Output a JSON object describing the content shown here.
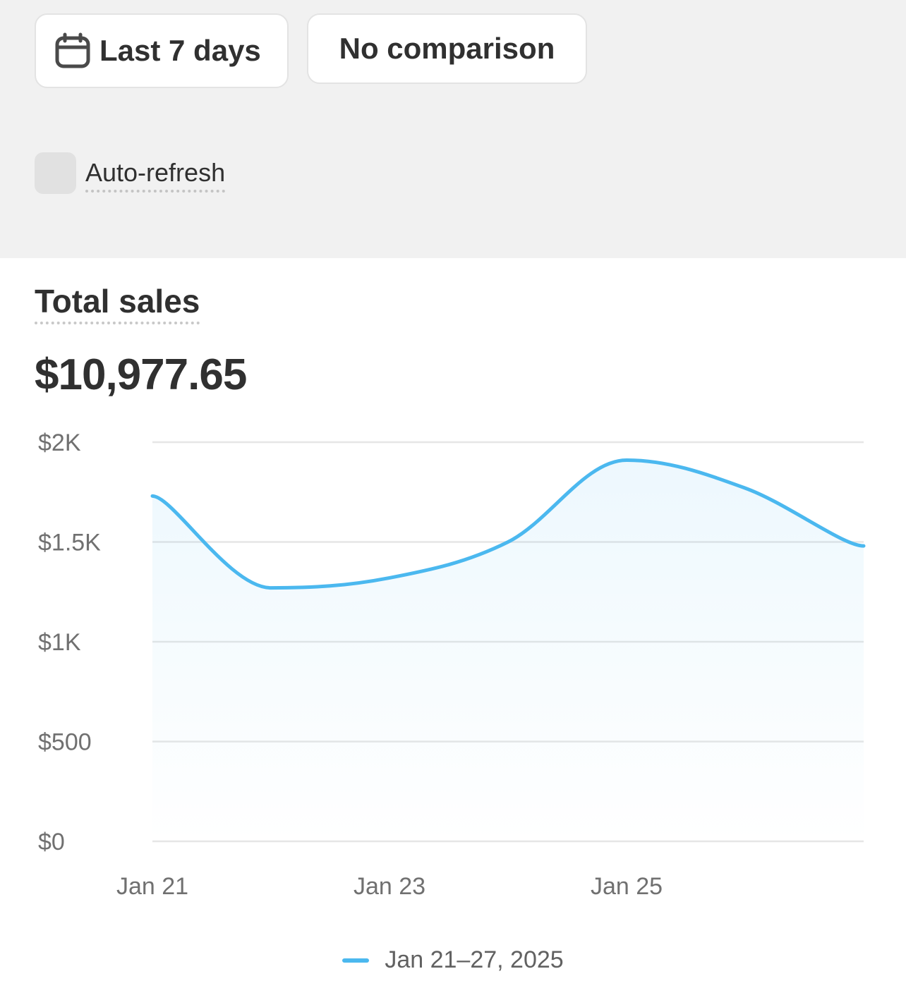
{
  "toolbar": {
    "date_button_label": "Last 7 days",
    "compare_button_label": "No comparison",
    "auto_refresh_label": "Auto-refresh",
    "date_icon": "calendar-icon"
  },
  "card": {
    "title": "Total sales",
    "total_value": "$10,977.65"
  },
  "colors": {
    "series": "#4bb8ef",
    "toolbar_bg": "#f1f1f1"
  },
  "chart_data": {
    "type": "area",
    "x": [
      "Jan 21",
      "Jan 22",
      "Jan 23",
      "Jan 24",
      "Jan 25",
      "Jan 26",
      "Jan 27"
    ],
    "x_tick_labels": [
      "Jan 21",
      "Jan 23",
      "Jan 25"
    ],
    "y_tick_labels": [
      "$2K",
      "$1.5K",
      "$1K",
      "$500",
      "$0"
    ],
    "y_ticks": [
      2000,
      1500,
      1000,
      500,
      0
    ],
    "ylim": [
      0,
      2000
    ],
    "grid": true,
    "legend_position": "bottom",
    "series": [
      {
        "name": "Jan 21–27, 2025",
        "values": [
          1730,
          1270,
          1320,
          1500,
          1910,
          1770,
          1480
        ]
      }
    ]
  }
}
